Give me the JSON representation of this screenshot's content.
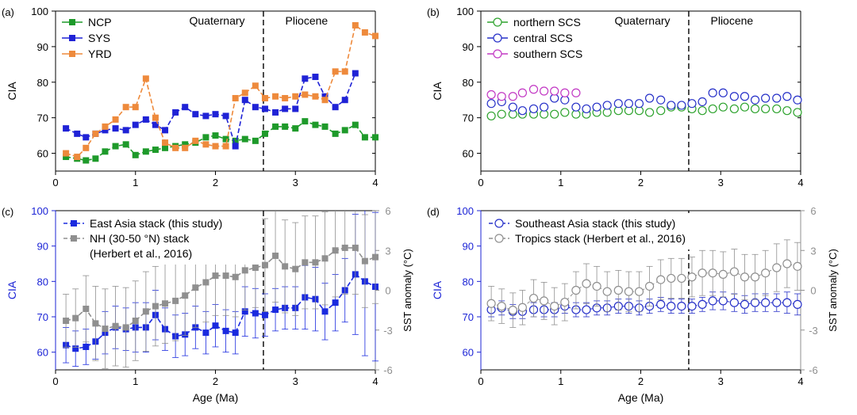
{
  "colors": {
    "NCP": "#1e9a2a",
    "SYS": "#1f22d6",
    "YRD": "#ee8a3c",
    "nSCS": "#2ea32e",
    "cSCS": "#2630c8",
    "sSCS": "#c238c4",
    "EA": "#1a2adf",
    "NH": "#8f8f8f",
    "SEA": "#2630c8",
    "TR": "#8f8f8f",
    "ciaAxis": "#1c24d6",
    "sstAxis": "#8f8f8f"
  },
  "chart_data": [
    {
      "panel": "(a)",
      "type": "line",
      "ylabel": "CIA",
      "xlim": [
        0,
        4
      ],
      "ylim": [
        55,
        100
      ],
      "xticks": [
        0,
        1,
        2,
        3,
        4
      ],
      "yticks": [
        60,
        70,
        80,
        90,
        100
      ],
      "boundary": 2.6,
      "period_left": "Quaternary",
      "period_right": "Pliocene",
      "series": [
        {
          "name": "NCP",
          "color_key": "NCP",
          "marker": "square-filled",
          "x": [
            0.13,
            0.27,
            0.38,
            0.5,
            0.62,
            0.75,
            0.88,
            1.0,
            1.13,
            1.25,
            1.37,
            1.5,
            1.62,
            1.75,
            1.88,
            2.0,
            2.13,
            2.25,
            2.37,
            2.5,
            2.62,
            2.75,
            2.87,
            3.0,
            3.12,
            3.25,
            3.37,
            3.5,
            3.62,
            3.75,
            3.87,
            4.0
          ],
          "y": [
            59,
            58.5,
            58,
            58.5,
            60.5,
            62,
            62.5,
            59.5,
            60.5,
            61,
            61.5,
            62,
            62.5,
            63,
            64.5,
            65,
            64,
            63.5,
            64,
            63.5,
            65.5,
            67.5,
            67.5,
            67,
            69,
            68,
            67.5,
            65.5,
            66.5,
            68,
            64.5,
            64.5
          ]
        },
        {
          "name": "SYS",
          "color_key": "SYS",
          "marker": "square-filled",
          "x": [
            0.13,
            0.27,
            0.38,
            0.5,
            0.62,
            0.75,
            0.88,
            1.0,
            1.13,
            1.25,
            1.37,
            1.5,
            1.62,
            1.75,
            1.88,
            2.0,
            2.13,
            2.25,
            2.37,
            2.5,
            2.62,
            2.75,
            2.87,
            3.0,
            3.12,
            3.25,
            3.37,
            3.5,
            3.62,
            3.75,
            3.87,
            4.0
          ],
          "y": [
            67,
            65.5,
            64.5,
            65.5,
            66.5,
            67,
            66.5,
            68,
            69.5,
            68,
            66.5,
            71.5,
            73,
            71,
            70.5,
            71,
            70.5,
            62,
            75,
            73,
            72.5,
            71.5,
            72.5,
            72.5,
            81,
            81.5,
            76,
            73,
            75,
            82.5,
            null,
            null
          ]
        },
        {
          "name": "YRD",
          "color_key": "YRD",
          "marker": "square-filled",
          "x": [
            0.13,
            0.27,
            0.38,
            0.5,
            0.62,
            0.75,
            0.88,
            1.0,
            1.13,
            1.25,
            1.37,
            1.5,
            1.62,
            1.75,
            1.88,
            2.0,
            2.13,
            2.25,
            2.37,
            2.5,
            2.62,
            2.75,
            2.87,
            3.0,
            3.12,
            3.25,
            3.37,
            3.5,
            3.62,
            3.75,
            3.87,
            4.0
          ],
          "y": [
            60,
            59,
            61.5,
            65.5,
            67.5,
            69.5,
            73,
            73,
            81,
            70,
            63,
            61.5,
            61.5,
            63.5,
            62.5,
            62,
            62,
            75.5,
            77,
            79,
            75.5,
            76,
            75.5,
            76,
            76.5,
            76,
            75,
            83,
            83,
            96,
            94,
            93
          ]
        }
      ]
    },
    {
      "panel": "(b)",
      "type": "scatter",
      "ylabel": "CIA",
      "xlim": [
        0,
        4
      ],
      "ylim": [
        55,
        100
      ],
      "xticks": [
        0,
        1,
        2,
        3,
        4
      ],
      "yticks": [
        60,
        70,
        80,
        90,
        100
      ],
      "boundary": 2.6,
      "period_left": "Quaternary",
      "period_right": "Pliocene",
      "series": [
        {
          "name": "northern SCS",
          "color_key": "nSCS",
          "marker": "circle-open",
          "x": [
            0.13,
            0.26,
            0.4,
            0.52,
            0.66,
            0.79,
            0.92,
            1.05,
            1.19,
            1.32,
            1.45,
            1.58,
            1.72,
            1.85,
            1.98,
            2.11,
            2.25,
            2.38,
            2.51,
            2.64,
            2.77,
            2.9,
            3.03,
            3.17,
            3.3,
            3.43,
            3.56,
            3.7,
            3.83,
            3.96
          ],
          "y": [
            70.5,
            71,
            71,
            71,
            71,
            71,
            71,
            71.5,
            71,
            71,
            71.5,
            71.5,
            72,
            72,
            72,
            71.5,
            72,
            73,
            73,
            72.5,
            72,
            72.5,
            73,
            72.5,
            73,
            72.5,
            72.5,
            72.5,
            72,
            71.5
          ]
        },
        {
          "name": "central SCS",
          "color_key": "cSCS",
          "marker": "circle-open",
          "x": [
            0.13,
            0.26,
            0.4,
            0.52,
            0.66,
            0.79,
            0.92,
            1.05,
            1.19,
            1.32,
            1.45,
            1.58,
            1.72,
            1.85,
            1.98,
            2.11,
            2.25,
            2.38,
            2.51,
            2.64,
            2.77,
            2.9,
            3.03,
            3.17,
            3.3,
            3.43,
            3.56,
            3.7,
            3.83,
            3.96
          ],
          "y": [
            74,
            74.5,
            73,
            72,
            72.5,
            73,
            75.5,
            75,
            73,
            72.5,
            73,
            73.5,
            74,
            74,
            74,
            75.5,
            75,
            73.5,
            73.5,
            74,
            74.5,
            77,
            77,
            76,
            76,
            75,
            75.5,
            75.5,
            76,
            75
          ]
        },
        {
          "name": "southern SCS",
          "color_key": "sSCS",
          "marker": "circle-open",
          "x": [
            0.13,
            0.26,
            0.4,
            0.52,
            0.66,
            0.79,
            0.92,
            1.05,
            1.19
          ],
          "y": [
            76.5,
            76,
            76,
            77,
            78,
            77.5,
            77.5,
            77,
            77
          ]
        }
      ]
    },
    {
      "panel": "(c)",
      "type": "line",
      "ylabel": "CIA",
      "y2label": "SST anomaly (°C)",
      "xlabel": "Age (Ma)",
      "xlim": [
        0,
        4
      ],
      "ylim": [
        55,
        100
      ],
      "y2lim": [
        -6,
        6
      ],
      "xticks": [
        0,
        1,
        2,
        3,
        4
      ],
      "yticks": [
        60,
        70,
        80,
        90,
        100
      ],
      "y2ticks": [
        -6,
        -3,
        0,
        3,
        6
      ],
      "boundary": 2.6,
      "series": [
        {
          "name": "East Asia stack (this study)",
          "color_key": "EA",
          "marker": "square-filled",
          "axis": "left",
          "x": [
            0.13,
            0.25,
            0.38,
            0.5,
            0.62,
            0.75,
            0.88,
            1.0,
            1.13,
            1.25,
            1.37,
            1.5,
            1.62,
            1.75,
            1.88,
            2.0,
            2.13,
            2.25,
            2.37,
            2.5,
            2.62,
            2.75,
            2.87,
            3.0,
            3.12,
            3.25,
            3.37,
            3.5,
            3.62,
            3.75,
            3.87,
            4.0
          ],
          "y": [
            62,
            61,
            61.5,
            63,
            65.5,
            67,
            66.5,
            67,
            67,
            70.5,
            66.5,
            64.5,
            65,
            67,
            65.5,
            67.5,
            66,
            65.5,
            71.5,
            71,
            70.5,
            72,
            72.5,
            72.5,
            75.5,
            75,
            71.5,
            74,
            77.5,
            82,
            80,
            78.5
          ],
          "err": [
            5,
            5,
            5,
            5,
            6,
            6,
            6,
            7,
            7,
            7,
            6,
            6,
            6,
            6,
            6,
            6,
            6,
            6,
            7,
            7,
            6,
            6,
            6,
            6,
            9,
            9,
            8,
            8,
            9,
            17,
            21,
            21
          ]
        },
        {
          "name": "NH (30-50 °N) stack (Herbert et al., 2016)",
          "legend_line2": "(Herbert et al., 2016)",
          "color_key": "NH",
          "marker": "square-filled",
          "axis": "right",
          "x": [
            0.13,
            0.25,
            0.38,
            0.5,
            0.62,
            0.75,
            0.88,
            1.0,
            1.13,
            1.25,
            1.37,
            1.5,
            1.62,
            1.75,
            1.88,
            2.0,
            2.13,
            2.25,
            2.37,
            2.5,
            2.62,
            2.75,
            2.87,
            3.0,
            3.12,
            3.25,
            3.37,
            3.5,
            3.62,
            3.75,
            3.87,
            4.0
          ],
          "y": [
            -2.3,
            -2.1,
            -1.4,
            -2.5,
            -2.9,
            -2.7,
            -2.8,
            -2.3,
            -1.6,
            -1.2,
            -1.0,
            -0.8,
            -0.4,
            0.2,
            0.6,
            1.1,
            1.1,
            1.0,
            1.5,
            1.7,
            1.9,
            2.6,
            1.8,
            1.6,
            2.1,
            2.1,
            2.4,
            3.0,
            3.2,
            3.2,
            2.2,
            2.5
          ],
          "err": [
            2,
            2.2,
            2.5,
            2.8,
            3,
            3,
            3,
            3,
            3,
            3,
            3,
            3,
            3,
            3,
            3,
            3,
            3,
            3,
            3,
            3,
            3.5,
            3.5,
            3.5,
            3.5,
            3.5,
            3.5,
            3.5,
            3.5,
            3.5,
            3.5,
            3.5,
            3.5
          ]
        }
      ]
    },
    {
      "panel": "(d)",
      "type": "scatter",
      "ylabel": "CIA",
      "y2label": "SST anomaly (°C)",
      "xlabel": "Age (Ma)",
      "xlim": [
        0,
        4
      ],
      "ylim": [
        55,
        100
      ],
      "y2lim": [
        -6,
        6
      ],
      "xticks": [
        0,
        1,
        2,
        3,
        4
      ],
      "yticks": [
        60,
        70,
        80,
        90,
        100
      ],
      "y2ticks": [
        -6,
        -3,
        0,
        3,
        6
      ],
      "boundary": 2.6,
      "series": [
        {
          "name": "Southeast Asia stack (this study)",
          "color_key": "SEA",
          "marker": "circle-open",
          "axis": "left",
          "x": [
            0.13,
            0.26,
            0.4,
            0.52,
            0.66,
            0.79,
            0.92,
            1.05,
            1.19,
            1.32,
            1.45,
            1.58,
            1.72,
            1.85,
            1.98,
            2.11,
            2.25,
            2.38,
            2.51,
            2.64,
            2.77,
            2.9,
            3.03,
            3.17,
            3.3,
            3.43,
            3.56,
            3.7,
            3.83,
            3.96
          ],
          "y": [
            72,
            72.5,
            71.5,
            71.5,
            72,
            72,
            72,
            73,
            72,
            72,
            72.5,
            72.5,
            73,
            73,
            72.5,
            73,
            73.5,
            73,
            73,
            73,
            73.5,
            74.5,
            74.5,
            74,
            73.5,
            74,
            74,
            74,
            74,
            73.5
          ],
          "err": [
            2,
            2,
            2,
            2,
            2,
            2,
            2,
            2,
            2,
            2,
            2,
            2,
            2,
            2,
            2,
            2,
            2,
            2,
            2,
            2,
            2,
            2.5,
            2.5,
            2.5,
            2.5,
            2.5,
            2.5,
            2.5,
            3,
            3
          ]
        },
        {
          "name": "Tropics stack (Herbert et al., 2016)",
          "color_key": "TR",
          "marker": "circle-open",
          "axis": "right",
          "x": [
            0.13,
            0.26,
            0.4,
            0.52,
            0.66,
            0.79,
            0.92,
            1.05,
            1.19,
            1.32,
            1.45,
            1.58,
            1.72,
            1.85,
            1.98,
            2.11,
            2.25,
            2.38,
            2.51,
            2.64,
            2.77,
            2.9,
            3.03,
            3.17,
            3.3,
            3.43,
            3.56,
            3.7,
            3.83,
            3.96
          ],
          "y": [
            -1,
            -1.2,
            -1.5,
            -1.3,
            -0.6,
            -0.8,
            -1.2,
            -0.9,
            0,
            0.5,
            0.3,
            -0.1,
            0,
            -0.1,
            -0.1,
            0.3,
            0.8,
            0.9,
            0.9,
            1,
            1.3,
            1.3,
            1.2,
            1.4,
            1,
            1,
            1.3,
            1.7,
            2,
            1.8
          ],
          "err": [
            1.3,
            1.3,
            1.3,
            1.3,
            1.4,
            1.4,
            1.4,
            1.4,
            1.4,
            1.5,
            1.5,
            1.5,
            1.5,
            1.5,
            1.5,
            1.5,
            1.5,
            1.5,
            1.5,
            1.5,
            1.7,
            1.7,
            1.7,
            1.7,
            1.7,
            1.7,
            1.7,
            1.8,
            1.8,
            1.8
          ]
        }
      ]
    }
  ]
}
